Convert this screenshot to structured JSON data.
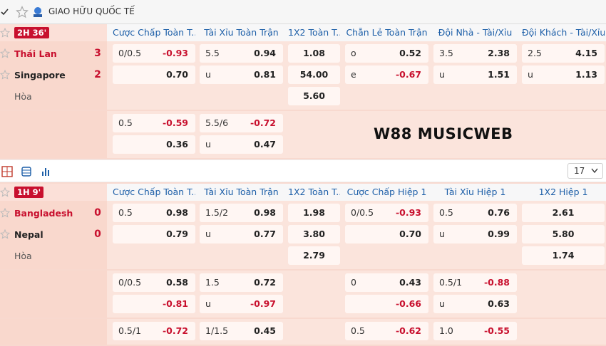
{
  "league": {
    "title": "GIAO HỮU QUỐC TẾ"
  },
  "watermark": "W88 MUSICWEB",
  "toolbar": {
    "count": "17"
  },
  "matches": [
    {
      "time": "2H 36'",
      "headers": [
        "Cược Chấp Toàn T...",
        "Tài Xỉu Toàn Trận",
        "1X2 Toàn T...",
        "Chẵn Lẻ Toàn Trận",
        "Đội Nhà - Tài/Xỉu",
        "Đội Khách - Tài/Xỉu"
      ],
      "teams": [
        {
          "name": "Thái Lan",
          "score": "3"
        },
        {
          "name": "Singapore",
          "score": "2"
        }
      ],
      "draw_label": "Hòa",
      "blocks": [
        [
          [
            {
              "label": "0/0.5",
              "value": "-0.93"
            },
            {
              "label": "5.5",
              "value": "0.94"
            },
            {
              "value": "1.08"
            },
            {
              "label": "o",
              "value": "0.52"
            },
            {
              "label": "3.5",
              "value": "2.38"
            },
            {
              "label": "2.5",
              "value": "4.15"
            }
          ],
          [
            {
              "value": "0.70"
            },
            {
              "label": "u",
              "value": "0.81"
            },
            {
              "value": "54.00"
            },
            {
              "label": "e",
              "value": "-0.67"
            },
            {
              "label": "u",
              "value": "1.51"
            },
            {
              "label": "u",
              "value": "1.13"
            }
          ],
          [
            null,
            null,
            {
              "value": "5.60"
            },
            null,
            null,
            null
          ]
        ],
        [
          [
            {
              "label": "0.5",
              "value": "-0.59"
            },
            {
              "label": "5.5/6",
              "value": "-0.72"
            },
            null,
            null,
            null,
            null
          ],
          [
            {
              "value": "0.36"
            },
            {
              "label": "u",
              "value": "0.47"
            },
            null,
            null,
            null,
            null
          ]
        ]
      ]
    },
    {
      "time": "1H 9'",
      "headers": [
        "Cược Chấp Toàn T...",
        "Tài Xỉu Toàn Trận",
        "1X2 Toàn T...",
        "Cược Chấp Hiệp 1",
        "Tài Xỉu Hiệp 1",
        "1X2 Hiệp 1"
      ],
      "teams": [
        {
          "name": "Bangladesh",
          "score": "0"
        },
        {
          "name": "Nepal",
          "score": "0"
        }
      ],
      "draw_label": "Hòa",
      "blocks": [
        [
          [
            {
              "label": "0.5",
              "value": "0.98"
            },
            {
              "label": "1.5/2",
              "value": "0.98"
            },
            {
              "value": "1.98"
            },
            {
              "label": "0/0.5",
              "value": "-0.93"
            },
            {
              "label": "0.5",
              "value": "0.76"
            },
            {
              "value": "2.61"
            }
          ],
          [
            {
              "value": "0.79"
            },
            {
              "label": "u",
              "value": "0.77"
            },
            {
              "value": "3.80"
            },
            {
              "value": "0.70"
            },
            {
              "label": "u",
              "value": "0.99"
            },
            {
              "value": "5.80"
            }
          ],
          [
            null,
            null,
            {
              "value": "2.79"
            },
            null,
            null,
            {
              "value": "1.74"
            }
          ]
        ],
        [
          [
            {
              "label": "0/0.5",
              "value": "0.58"
            },
            {
              "label": "1.5",
              "value": "0.72"
            },
            null,
            {
              "label": "0",
              "value": "0.43"
            },
            {
              "label": "0.5/1",
              "value": "-0.88"
            },
            null
          ],
          [
            {
              "value": "-0.81"
            },
            {
              "label": "u",
              "value": "-0.97"
            },
            null,
            {
              "value": "-0.66"
            },
            {
              "label": "u",
              "value": "0.63"
            },
            null
          ]
        ],
        [
          [
            {
              "label": "0.5/1",
              "value": "-0.72"
            },
            {
              "label": "1/1.5",
              "value": "0.45"
            },
            null,
            {
              "label": "0.5",
              "value": "-0.62"
            },
            {
              "label": "1.0",
              "value": "-0.55"
            },
            null
          ]
        ]
      ]
    }
  ]
}
